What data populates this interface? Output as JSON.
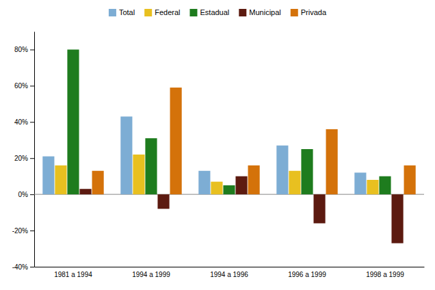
{
  "chart_data": {
    "type": "bar",
    "categories": [
      "1981 a 1994",
      "1994 a 1999",
      "1994 a 1996",
      "1996 a 1999",
      "1998 a 1999"
    ],
    "series": [
      {
        "name": "Total",
        "color": "#7dadd4",
        "values": [
          21,
          43,
          13,
          27,
          12
        ]
      },
      {
        "name": "Federal",
        "color": "#e8c020",
        "values": [
          16,
          22,
          7,
          13,
          8
        ]
      },
      {
        "name": "Estadual",
        "color": "#1e7c1e",
        "values": [
          80,
          31,
          5,
          25,
          10
        ]
      },
      {
        "name": "Municipal",
        "color": "#5c1a10",
        "values": [
          3,
          -8,
          10,
          -16,
          -27
        ]
      },
      {
        "name": "Privada",
        "color": "#d4720a",
        "values": [
          13,
          59,
          16,
          36,
          16
        ]
      }
    ],
    "ylim": [
      -40,
      90
    ],
    "yticks": [
      {
        "value": -40,
        "label": "-40%"
      },
      {
        "value": -20,
        "label": "-20%"
      },
      {
        "value": 0,
        "label": "0%"
      },
      {
        "value": 20,
        "label": "20%"
      },
      {
        "value": 40,
        "label": "40%"
      },
      {
        "value": 60,
        "label": "60%"
      },
      {
        "value": 80,
        "label": "80%"
      }
    ],
    "grid": false,
    "legend": "top"
  }
}
